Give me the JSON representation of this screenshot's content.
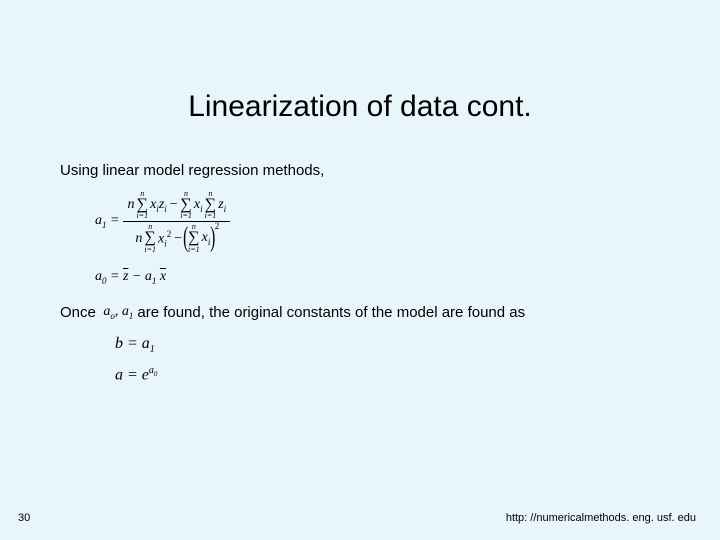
{
  "background_color": "#e8f5fb",
  "title": {
    "text": "Linearization of data cont.",
    "fontsize": 30
  },
  "body": {
    "line1": "Using linear model regression methods,",
    "fontsize": 15
  },
  "formula_a1": {
    "lhs": "a",
    "lhs_sub": "1",
    "eq": " = ",
    "num_n": "n",
    "num_sum1_top": "n",
    "num_sum1_bot": "i=1",
    "num_sum1_body_x": "x",
    "num_sum1_body_xi": "i",
    "num_sum1_body_z": "z",
    "num_sum1_body_zi": "i",
    "minus": " − ",
    "num_sum2_top": "n",
    "num_sum2_bot": "i=1",
    "num_sum2_body_x": "x",
    "num_sum2_body_xi": "i",
    "num_sum3_top": "n",
    "num_sum3_bot": "i=1",
    "num_sum3_body_z": "z",
    "num_sum3_body_zi": "i",
    "den_n": "n",
    "den_sum1_top": "n",
    "den_sum1_bot": "i=1",
    "den_sum1_body_x": "x",
    "den_sum1_body_xi": "i",
    "den_sum1_sq": "2",
    "den_sum2_top": "n",
    "den_sum2_bot": "i=1",
    "den_sum2_body_x": "x",
    "den_sum2_body_xi": "i",
    "den_paren_sq": "2"
  },
  "formula_a0": {
    "lhs": "a",
    "lhs_sub": "0",
    "eq": " = ",
    "zbar": "z",
    "minus": " − ",
    "a1": "a",
    "a1_sub": "1",
    "sp": " ",
    "xbar": "x"
  },
  "once": {
    "pre": "Once",
    "a_o": "a",
    "a_o_sub": "o",
    "comma": ", ",
    "a_1": "a",
    "a_1_sub": "1",
    "post": " are found, the original constants of the model are found as",
    "fontsize": 15
  },
  "result_b": {
    "lhs": "b",
    "eq": " = ",
    "rhs": "a",
    "rhs_sub": "1"
  },
  "result_a": {
    "lhs": "a",
    "eq": " = ",
    "e": "e",
    "exp_a": "a",
    "exp_sub": "0"
  },
  "footer": {
    "page": "30",
    "url": "http: //numericalmethods. eng. usf. edu",
    "fontsize": 11
  }
}
